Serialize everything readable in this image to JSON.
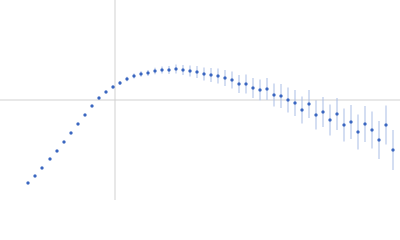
{
  "chart_data": {
    "type": "scatter",
    "color": "#3a66c0",
    "error_color": "#a9bde6",
    "xlim": [
      -115,
      285
    ],
    "ylim": [
      -100,
      100
    ],
    "x": [
      -87,
      -80,
      -73,
      -65,
      -58,
      -51,
      -44,
      -37,
      -30,
      -23,
      -16,
      -9,
      -2,
      5,
      12,
      19,
      26,
      33,
      40,
      47,
      54,
      61,
      68,
      75,
      82,
      89,
      96,
      103,
      110,
      117,
      124,
      131,
      138,
      145,
      152,
      159,
      166,
      173,
      180,
      187,
      194,
      201,
      208,
      215,
      222,
      229,
      236,
      243,
      250,
      257,
      264,
      271,
      278
    ],
    "values": [
      -83,
      -76,
      -68,
      -59,
      -51,
      -42,
      -33,
      -24,
      -15,
      -6,
      2,
      8,
      13,
      17,
      21,
      24,
      26,
      27,
      29,
      30,
      30,
      31,
      30,
      29,
      28,
      26,
      25,
      24,
      22,
      20,
      16,
      16,
      12,
      10,
      11,
      5,
      4,
      0,
      -3,
      -10,
      -4,
      -15,
      -12,
      -20,
      -14,
      -25,
      -22,
      -32,
      -24,
      -30,
      -40,
      -25,
      -50
    ],
    "errors": [
      0.5,
      0.5,
      0.6,
      0.7,
      0.8,
      0.9,
      1,
      1,
      1.2,
      1.3,
      1.5,
      1.6,
      1.8,
      2,
      2.2,
      2.5,
      2.8,
      3,
      3.2,
      3.5,
      4,
      4.5,
      5,
      5.5,
      6,
      6.5,
      7,
      7.5,
      8,
      8.5,
      9,
      9.5,
      10,
      10.5,
      11,
      11.5,
      12,
      12.5,
      13,
      13.5,
      14,
      14.5,
      15,
      15.5,
      16,
      16.5,
      17,
      17.5,
      18,
      18.5,
      19,
      19.5,
      20
    ]
  }
}
